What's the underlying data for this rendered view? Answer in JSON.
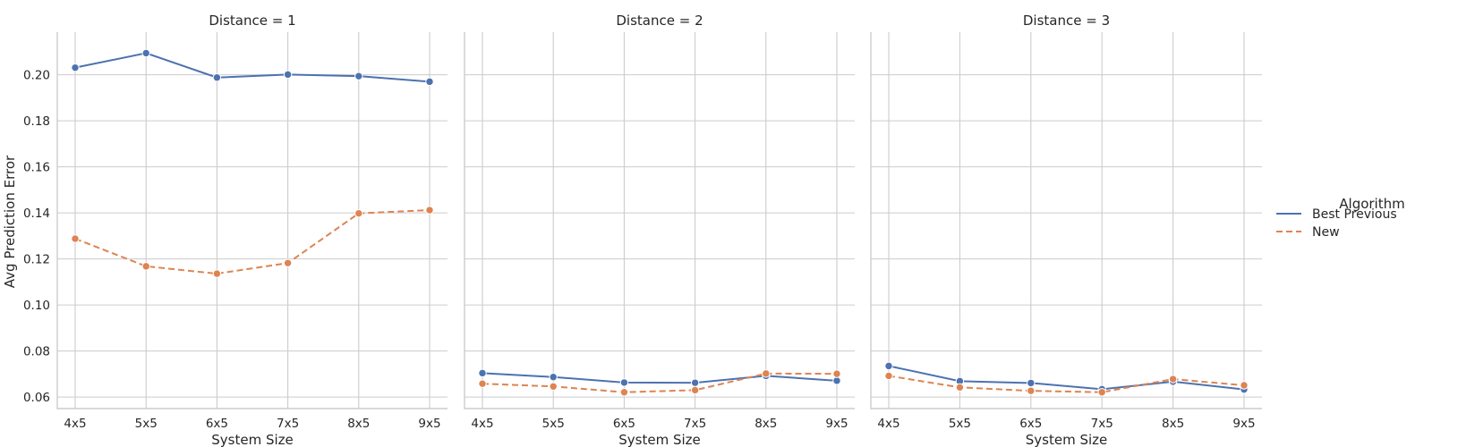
{
  "chart_data": {
    "type": "line",
    "panels": [
      {
        "title": "Distance = 1",
        "series": [
          {
            "name": "Best Previous",
            "values": [
              0.2031,
              0.2094,
              0.1988,
              0.2001,
              0.1994,
              0.197
            ]
          },
          {
            "name": "New",
            "values": [
              0.1288,
              0.1168,
              0.1136,
              0.1182,
              0.1398,
              0.1412
            ]
          }
        ]
      },
      {
        "title": "Distance = 2",
        "series": [
          {
            "name": "Best Previous",
            "values": [
              0.0704,
              0.0687,
              0.0663,
              0.0662,
              0.0692,
              0.0671
            ]
          },
          {
            "name": "New",
            "values": [
              0.0658,
              0.0646,
              0.0621,
              0.063,
              0.0702,
              0.0701
            ]
          }
        ]
      },
      {
        "title": "Distance = 3",
        "series": [
          {
            "name": "Best Previous",
            "values": [
              0.0735,
              0.0669,
              0.0661,
              0.0634,
              0.0667,
              0.0633
            ]
          },
          {
            "name": "New",
            "values": [
              0.0692,
              0.0642,
              0.0627,
              0.0621,
              0.0678,
              0.0651
            ]
          }
        ]
      }
    ],
    "categories": [
      "4x5",
      "5x5",
      "6x5",
      "7x5",
      "8x5",
      "9x5"
    ],
    "xlabel": "System Size",
    "ylabel": "Avg Prediction Error",
    "yticks": [
      "0.06",
      "0.08",
      "0.10",
      "0.12",
      "0.14",
      "0.16",
      "0.18",
      "0.20"
    ],
    "ylim": [
      0.055,
      0.2185
    ],
    "grid": true,
    "legend": {
      "title": "Algorithm",
      "placement": "right",
      "entries": [
        {
          "name": "Best Previous",
          "color": "#4c72b0",
          "style": "solid"
        },
        {
          "name": "New",
          "color": "#dd8452",
          "style": "dashed"
        }
      ]
    }
  }
}
